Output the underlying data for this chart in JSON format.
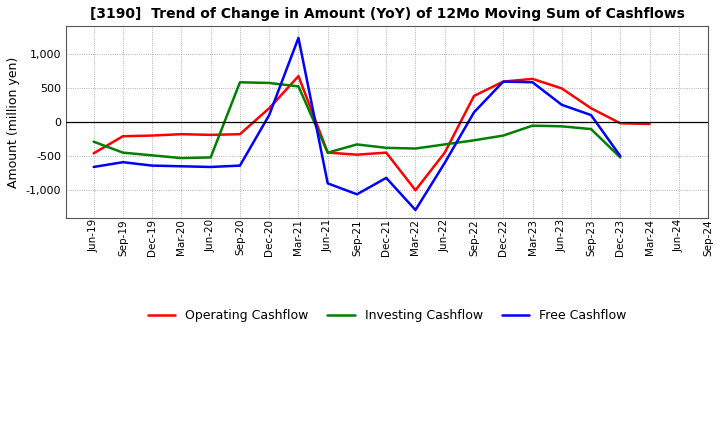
{
  "title": "[3190]  Trend of Change in Amount (YoY) of 12Mo Moving Sum of Cashflows",
  "ylabel": "Amount (million yen)",
  "x_labels": [
    "Jun-19",
    "Sep-19",
    "Dec-19",
    "Mar-20",
    "Jun-20",
    "Sep-20",
    "Dec-20",
    "Mar-21",
    "Jun-21",
    "Sep-21",
    "Dec-21",
    "Mar-22",
    "Jun-22",
    "Sep-22",
    "Dec-22",
    "Mar-23",
    "Jun-23",
    "Sep-23",
    "Dec-23",
    "Mar-24",
    "Jun-24",
    "Sep-24"
  ],
  "operating": [
    -460,
    -210,
    -200,
    -180,
    -190,
    -180,
    200,
    670,
    -450,
    -480,
    -450,
    -1000,
    -450,
    380,
    590,
    630,
    490,
    200,
    -20,
    -30,
    null,
    null
  ],
  "investing": [
    -290,
    -450,
    -490,
    -530,
    -520,
    580,
    570,
    520,
    -450,
    -330,
    -380,
    -390,
    -330,
    -270,
    -200,
    -55,
    -65,
    -105,
    -520,
    null,
    null,
    null
  ],
  "free": [
    -660,
    -590,
    -640,
    -650,
    -660,
    -640,
    100,
    1230,
    -900,
    -1060,
    -820,
    -1290,
    -600,
    140,
    590,
    580,
    250,
    100,
    -500,
    null,
    null,
    null
  ],
  "operating_color": "#ff0000",
  "investing_color": "#008000",
  "free_color": "#0000ff",
  "ylim": [
    -1400,
    1400
  ],
  "yticks": [
    -1000,
    -500,
    0,
    500,
    1000
  ],
  "bg_color": "#ffffff",
  "grid_color": "#999999",
  "legend_labels": [
    "Operating Cashflow",
    "Investing Cashflow",
    "Free Cashflow"
  ],
  "linewidth": 1.8
}
